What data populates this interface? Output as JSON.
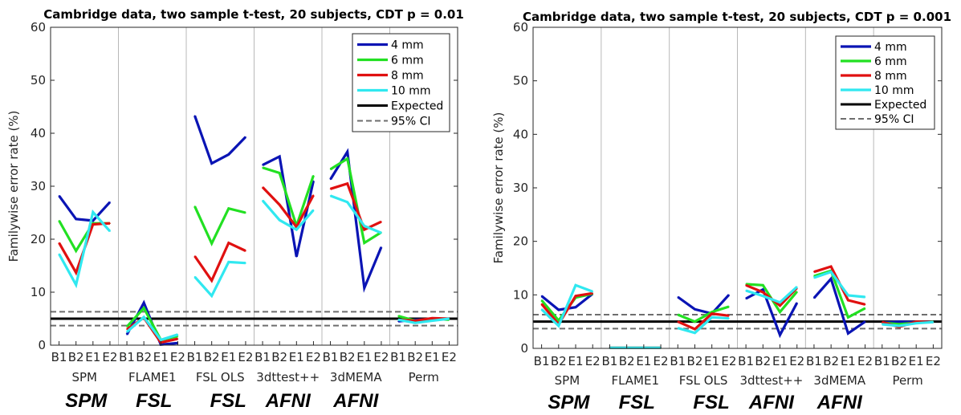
{
  "chart_data": [
    {
      "type": "line",
      "title": "Cambridge data, two sample t-test, 20 subjects, CDT p = 0.01",
      "ylabel": "Familywise error rate (%)",
      "ylim": [
        0,
        60
      ],
      "yticks": [
        0,
        10,
        20,
        30,
        40,
        50,
        60
      ],
      "legend_position": "top-right",
      "tick_labels": [
        "B1",
        "B2",
        "E1",
        "E2"
      ],
      "groups": [
        "SPM",
        "FLAME1",
        "FSL OLS",
        "3dttest++",
        "3dMEMA",
        "Perm"
      ],
      "packages": [
        "SPM",
        "FSL",
        "FSL",
        "AFNI",
        "AFNI"
      ],
      "expected": 5,
      "ci": [
        3.7,
        6.3
      ],
      "series": [
        {
          "name": "4 mm",
          "color": "#0a14b4",
          "groups": [
            [
              28.2,
              23.8,
              23.5,
              27.0
            ],
            [
              2.0,
              8.0,
              0.1,
              0.4
            ],
            [
              43.3,
              34.3,
              36.0,
              39.3
            ],
            [
              34.0,
              35.6,
              16.7,
              31.0
            ],
            [
              31.3,
              36.5,
              10.8,
              18.5
            ],
            [
              4.5,
              4.8,
              4.9,
              5.0
            ]
          ]
        },
        {
          "name": "6 mm",
          "color": "#22e022",
          "groups": [
            [
              23.5,
              17.8,
              23.0,
              23.0
            ],
            [
              3.5,
              7.0,
              1.0,
              1.7
            ],
            [
              26.2,
              19.2,
              25.8,
              25.0
            ],
            [
              33.5,
              32.5,
              22.5,
              32.0
            ],
            [
              33.2,
              35.2,
              19.3,
              21.3
            ],
            [
              5.5,
              4.6,
              5.0,
              4.8
            ]
          ]
        },
        {
          "name": "8 mm",
          "color": "#e01010",
          "groups": [
            [
              19.3,
              13.7,
              22.8,
              23.0
            ],
            [
              3.0,
              5.2,
              0.5,
              1.2
            ],
            [
              16.8,
              12.2,
              19.3,
              17.8
            ],
            [
              29.8,
              26.5,
              22.3,
              28.3
            ],
            [
              29.5,
              30.5,
              21.8,
              23.3
            ],
            [
              4.8,
              4.6,
              5.1,
              5.0
            ]
          ]
        },
        {
          "name": "10 mm",
          "color": "#30e8f0",
          "groups": [
            [
              17.2,
              11.4,
              25.1,
              21.5
            ],
            [
              2.5,
              5.3,
              1.0,
              2.0
            ],
            [
              12.9,
              9.3,
              15.7,
              15.5
            ],
            [
              27.3,
              23.6,
              21.8,
              25.5
            ],
            [
              28.2,
              27.0,
              22.5,
              21.2
            ],
            [
              4.8,
              4.2,
              4.6,
              5.0
            ]
          ]
        }
      ],
      "legend": [
        "4 mm",
        "6 mm",
        "8 mm",
        "10 mm",
        "Expected",
        "95% CI"
      ]
    },
    {
      "type": "line",
      "title": "Cambridge data, two sample t-test, 20 subjects, CDT p = 0.001",
      "ylabel": "Familywise error rate (%)",
      "ylim": [
        0,
        60
      ],
      "yticks": [
        0,
        10,
        20,
        30,
        40,
        50,
        60
      ],
      "legend_position": "top-right",
      "tick_labels": [
        "B1",
        "B2",
        "E1",
        "E2"
      ],
      "groups": [
        "SPM",
        "FLAME1",
        "FSL OLS",
        "3dttest++",
        "3dMEMA",
        "Perm"
      ],
      "packages": [
        "SPM",
        "FSL",
        "FSL",
        "AFNI",
        "AFNI"
      ],
      "expected": 5,
      "ci": [
        3.7,
        6.3
      ],
      "series": [
        {
          "name": "4 mm",
          "color": "#0a14b4",
          "groups": [
            [
              9.8,
              7.2,
              7.7,
              10.2
            ],
            [
              0.1,
              0.1,
              0.1,
              0.1
            ],
            [
              9.6,
              7.3,
              6.5,
              10.0
            ],
            [
              9.3,
              11.0,
              2.5,
              8.5
            ],
            [
              9.4,
              13.0,
              2.8,
              5.0
            ],
            [
              4.8,
              5.0,
              4.9,
              5.0
            ]
          ]
        },
        {
          "name": "6 mm",
          "color": "#22e022",
          "groups": [
            [
              9.0,
              5.2,
              9.5,
              10.2
            ],
            [
              0.1,
              0.1,
              0.1,
              0.1
            ],
            [
              6.3,
              5.0,
              6.8,
              7.8
            ],
            [
              12.0,
              11.8,
              6.8,
              10.6
            ],
            [
              13.5,
              14.5,
              5.8,
              7.5
            ],
            [
              4.8,
              4.5,
              4.8,
              5.0
            ]
          ]
        },
        {
          "name": "8 mm",
          "color": "#e01010",
          "groups": [
            [
              8.3,
              4.5,
              9.8,
              10.3
            ],
            [
              0.1,
              0.1,
              0.1,
              0.1
            ],
            [
              5.0,
              3.6,
              6.5,
              6.1
            ],
            [
              11.8,
              10.5,
              8.0,
              11.3
            ],
            [
              14.3,
              15.3,
              9.0,
              8.2
            ],
            [
              4.9,
              4.0,
              5.0,
              4.9
            ]
          ]
        },
        {
          "name": "10 mm",
          "color": "#30e8f0",
          "groups": [
            [
              7.3,
              4.2,
              11.8,
              10.6
            ],
            [
              0.1,
              0.1,
              0.1,
              0.1
            ],
            [
              3.8,
              2.9,
              5.8,
              5.6
            ],
            [
              10.8,
              9.8,
              8.6,
              11.5
            ],
            [
              13.2,
              14.3,
              9.9,
              9.6
            ],
            [
              4.5,
              4.2,
              4.7,
              4.9
            ]
          ]
        }
      ],
      "legend": [
        "4 mm",
        "6 mm",
        "8 mm",
        "10 mm",
        "Expected",
        "95% CI"
      ]
    }
  ]
}
